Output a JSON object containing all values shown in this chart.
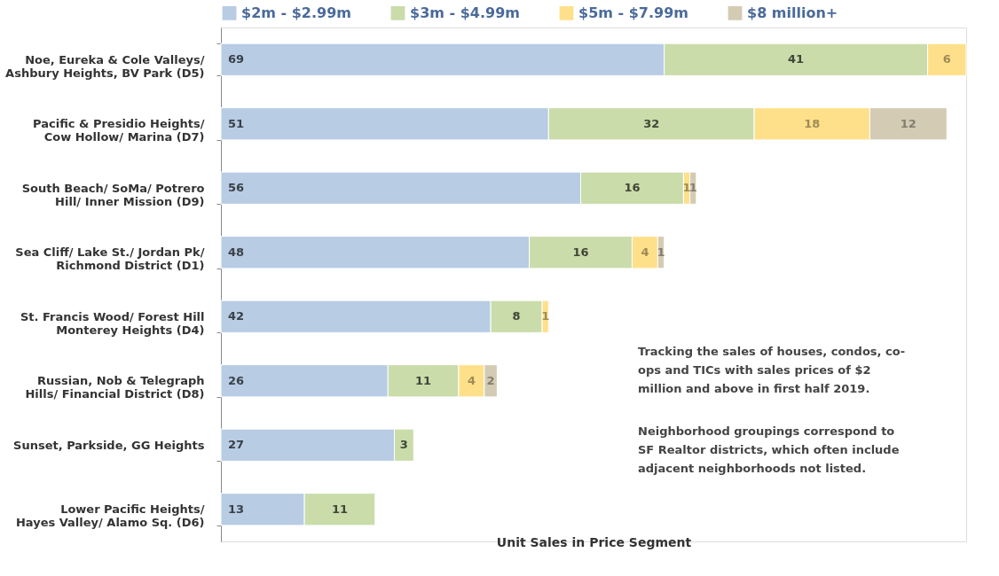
{
  "chart_data": {
    "type": "bar",
    "orientation": "horizontal",
    "stacked": true,
    "data_labels": true,
    "legend": "top",
    "grid": false,
    "xlabel": "Unit Sales in Price Segment",
    "categories": [
      "Noe, Eureka & Cole Valleys/\nAshbury Heights, BV Park (D5)",
      "Pacific & Presidio Heights/\nCow Hollow/ Marina (D7)",
      "South Beach/ SoMa/ Potrero\nHill/ Inner Mission  (D9)",
      "Sea Cliff/ Lake St./ Jordan Pk/\nRichmond District (D1)",
      "St. Francis Wood/ Forest Hill\nMonterey Heights (D4)",
      "Russian, Nob & Telegraph\nHills/ Financial District (D8)",
      "Sunset, Parkside, GG Heights",
      "Lower Pacific Heights/\nHayes Valley/ Alamo Sq. (D6)"
    ],
    "series": [
      {
        "name": "$2m - $2.99m",
        "color": "#b8cce4",
        "values": [
          69,
          51,
          56,
          48,
          42,
          26,
          27,
          13
        ]
      },
      {
        "name": "$3m - $4.99m",
        "color": "#c9dcaa",
        "values": [
          41,
          32,
          16,
          16,
          8,
          11,
          3,
          11
        ]
      },
      {
        "name": "$5m - $7.99m",
        "color": "#ffe08a",
        "values": [
          6,
          18,
          1,
          4,
          1,
          4,
          null,
          null
        ]
      },
      {
        "name": "$8 million+",
        "color": "#d3cbb3",
        "values": [
          null,
          12,
          1,
          1,
          null,
          2,
          null,
          null
        ]
      }
    ],
    "annotations": [
      "Tracking the sales of houses, condos, co-\nops and TICs with sales prices of $2\nmillion and above in first half 2019.",
      "Neighborhood groupings correspond to\nSF Realtor districts, which often include\nadjacent neighborhoods not listed."
    ]
  }
}
